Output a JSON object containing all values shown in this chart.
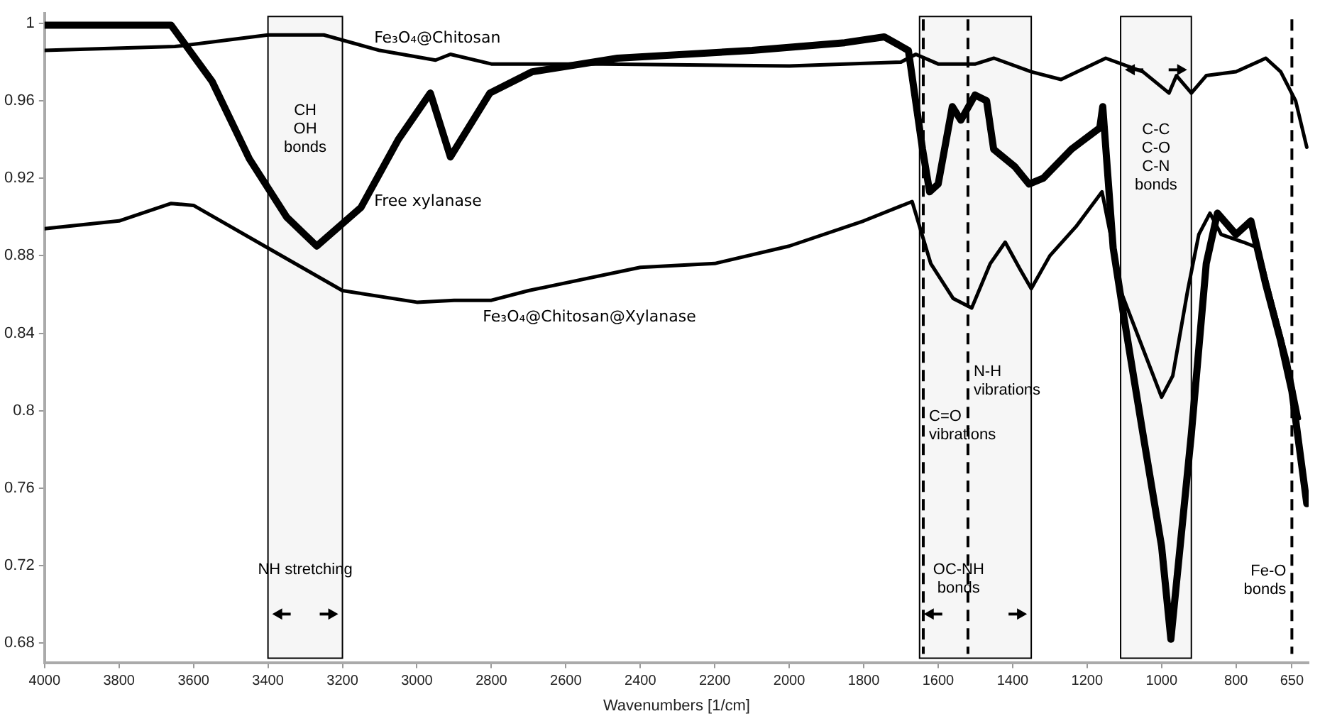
{
  "chart_data": {
    "type": "line",
    "xlabel": "Wavenumbers [1/cm]",
    "xlim": [
      4000,
      605
    ],
    "xticks": [
      4000,
      3800,
      3600,
      3400,
      3200,
      3000,
      2800,
      2600,
      2400,
      2200,
      2000,
      1800,
      1600,
      1400,
      1200,
      1000,
      800,
      650
    ],
    "ylim": [
      0.67,
      1.005
    ],
    "yticks": [
      0.68,
      0.72,
      0.76,
      0.8,
      0.84,
      0.88,
      0.92,
      0.96,
      1
    ],
    "grid": false,
    "legend": false,
    "marker": "none",
    "line_style": "solid",
    "series": [
      {
        "name": "Fe₃O₄@Chitosan",
        "color": "#000000",
        "x": [
          4000,
          3650,
          3400,
          3250,
          3100,
          2950,
          2910,
          2800,
          2500,
          2000,
          1700,
          1660,
          1600,
          1500,
          1450,
          1350,
          1270,
          1150,
          1050,
          980,
          960,
          920,
          880,
          800,
          720,
          680,
          640,
          610
        ],
        "values": [
          0.986,
          0.988,
          0.994,
          0.994,
          0.986,
          0.981,
          0.984,
          0.979,
          0.979,
          0.978,
          0.98,
          0.984,
          0.979,
          0.979,
          0.982,
          0.975,
          0.971,
          0.982,
          0.975,
          0.964,
          0.973,
          0.964,
          0.973,
          0.975,
          0.982,
          0.975,
          0.96,
          0.936
        ]
      },
      {
        "name": "Free xylanase",
        "color": "#000000",
        "x": [
          4000,
          3660,
          3550,
          3450,
          3350,
          3269,
          3150,
          3050,
          2964,
          2910,
          2804,
          2690,
          2461,
          2100,
          1851,
          1745,
          1680,
          1642,
          1623,
          1600,
          1562,
          1539,
          1501,
          1470,
          1451,
          1394,
          1356,
          1318,
          1242,
          1166,
          1158,
          1130,
          1100,
          1050,
          1000,
          975,
          920,
          880,
          850,
          800,
          760,
          720,
          680,
          650,
          610
        ],
        "values": [
          0.999,
          0.999,
          0.97,
          0.93,
          0.9,
          0.885,
          0.905,
          0.94,
          0.964,
          0.931,
          0.964,
          0.975,
          0.982,
          0.986,
          0.99,
          0.993,
          0.986,
          0.935,
          0.913,
          0.917,
          0.957,
          0.95,
          0.963,
          0.96,
          0.935,
          0.926,
          0.917,
          0.92,
          0.935,
          0.946,
          0.957,
          0.884,
          0.847,
          0.788,
          0.73,
          0.682,
          0.788,
          0.876,
          0.902,
          0.891,
          0.898,
          0.865,
          0.836,
          0.81,
          0.752
        ]
      },
      {
        "name": "Fe₃O₄@Chitosan@Xylanase",
        "color": "#000000",
        "x": [
          4000,
          3800,
          3660,
          3600,
          3400,
          3200,
          3000,
          2900,
          2800,
          2700,
          2400,
          2200,
          2000,
          1800,
          1670,
          1620,
          1560,
          1510,
          1460,
          1420,
          1380,
          1350,
          1300,
          1230,
          1160,
          1130,
          1110,
          1050,
          1000,
          970,
          930,
          900,
          870,
          840,
          780,
          740,
          700,
          660,
          630
        ],
        "values": [
          0.894,
          0.898,
          0.907,
          0.906,
          0.884,
          0.862,
          0.856,
          0.857,
          0.857,
          0.862,
          0.874,
          0.876,
          0.885,
          0.898,
          0.908,
          0.876,
          0.858,
          0.853,
          0.876,
          0.887,
          0.873,
          0.863,
          0.88,
          0.895,
          0.913,
          0.884,
          0.862,
          0.832,
          0.807,
          0.818,
          0.862,
          0.891,
          0.902,
          0.891,
          0.887,
          0.884,
          0.854,
          0.825,
          0.796
        ]
      }
    ],
    "bands": [
      {
        "axis": "x",
        "from": 3400,
        "to": 3200,
        "color": "#000000",
        "label": "NH stretching"
      },
      {
        "axis": "x",
        "from": 1650,
        "to": 1350,
        "color": "#000000",
        "label": "OC-NH\nbonds"
      },
      {
        "axis": "x",
        "from": 1110,
        "to": 920,
        "color": "#000000",
        "label": "C-C\nC-O\nC-N\nbonds"
      }
    ],
    "ref_lines": [
      {
        "axis": "x",
        "value": 1640,
        "color": "#000000",
        "line_style": "dashed",
        "label": "C=O\nvibrations"
      },
      {
        "axis": "x",
        "value": 1520,
        "color": "#000000",
        "line_style": "dashed",
        "label": "N-H\nvibrations"
      },
      {
        "axis": "x",
        "value": 650,
        "color": "#000000",
        "line_style": "dashed",
        "label": "Fe-O\nbonds"
      }
    ],
    "annotations": [
      "CH\nOH\nbonds"
    ]
  }
}
